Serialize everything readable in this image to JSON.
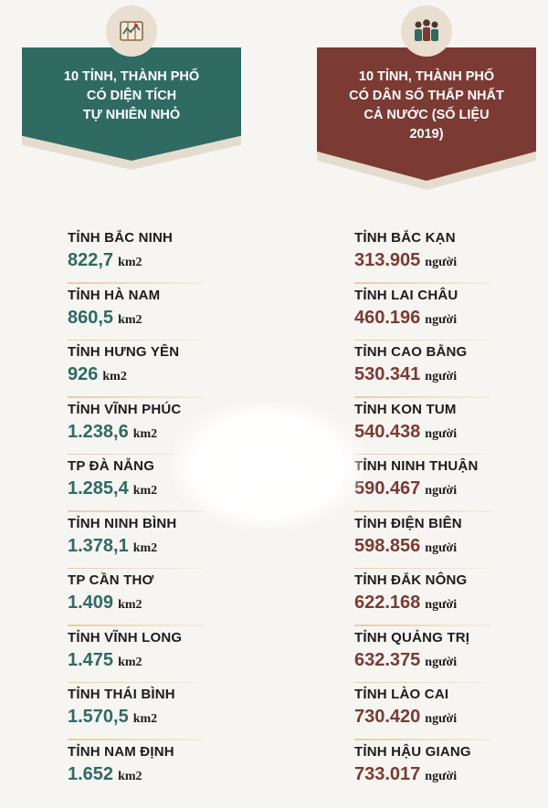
{
  "left_panel": {
    "icon": "map-scroll-icon",
    "title": "10 TỈNH, THÀNH PHỐ\nCÓ DIỆN TÍCH\nTỰ NHIÊN NHỎ",
    "unit": "km2",
    "items": [
      {
        "name": "TỈNH BẮC NINH",
        "value": "822,7"
      },
      {
        "name": "TỈNH HÀ NAM",
        "value": "860,5"
      },
      {
        "name": "TỈNH HƯNG YÊN",
        "value": "926"
      },
      {
        "name": "TỈNH VĨNH PHÚC",
        "value": "1.238,6"
      },
      {
        "name": "TP ĐÀ NẴNG",
        "value": "1.285,4"
      },
      {
        "name": "TỈNH NINH BÌNH",
        "value": "1.378,1"
      },
      {
        "name": "TP CẦN THƠ",
        "value": "1.409"
      },
      {
        "name": "TỈNH VĨNH LONG",
        "value": "1.475"
      },
      {
        "name": "TỈNH THÁI BÌNH",
        "value": "1.570,5"
      },
      {
        "name": "TỈNH NAM ĐỊNH",
        "value": "1.652"
      }
    ]
  },
  "right_panel": {
    "icon": "people-group-icon",
    "title": "10 TỈNH, THÀNH PHỐ\nCÓ DÂN SỐ THẤP NHẤT\nCẢ NƯỚC (SỐ LIỆU\n2019)",
    "unit": "người",
    "items": [
      {
        "name": "TỈNH BẮC KẠN",
        "value": "313.905"
      },
      {
        "name": "TỈNH LAI CHÂU",
        "value": "460.196"
      },
      {
        "name": "TỈNH CAO BẰNG",
        "value": "530.341"
      },
      {
        "name": "TỈNH KON TUM",
        "value": "540.438"
      },
      {
        "name": "TỈNH NINH THUẬN",
        "value": "590.467"
      },
      {
        "name": "TỈNH ĐIỆN BIÊN",
        "value": "598.856"
      },
      {
        "name": "TỈNH ĐẮK NÔNG",
        "value": "622.168"
      },
      {
        "name": "TỈNH QUẢNG TRỊ",
        "value": "632.375"
      },
      {
        "name": "TỈNH LÀO CAI",
        "value": "730.420"
      },
      {
        "name": "TỈNH HẬU GIANG",
        "value": "733.017"
      }
    ]
  },
  "colors": {
    "teal": "#2f6a63",
    "maroon": "#7b3a33",
    "background": "#f7f5f2"
  }
}
